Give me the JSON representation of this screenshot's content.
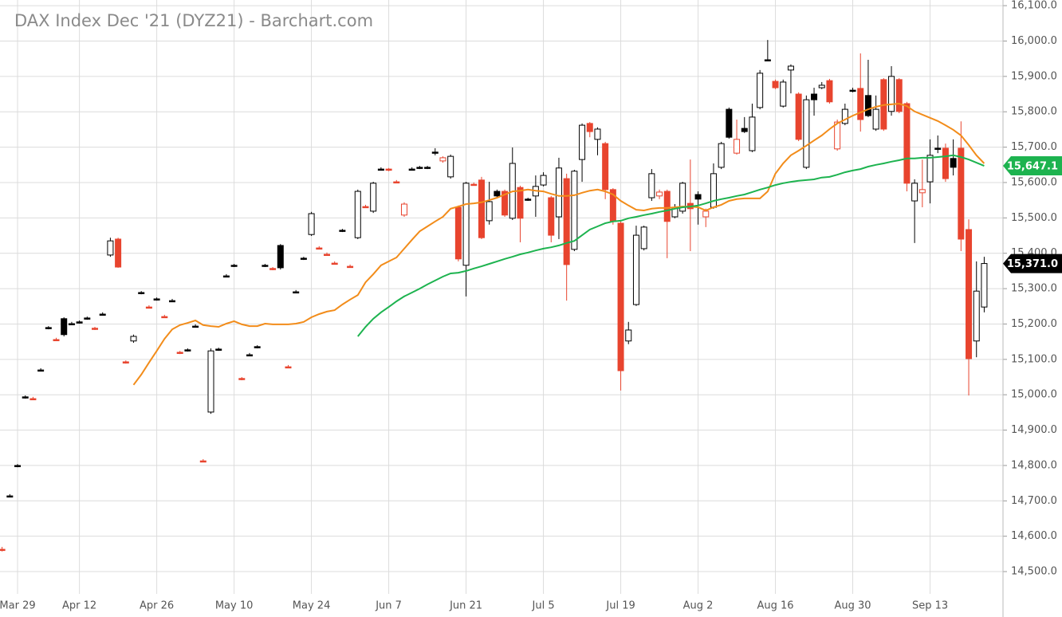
{
  "chart_data": {
    "type": "candlestick",
    "title": "DAX Index Dec '21 (DYZ21) - Barchart.com",
    "colors": {
      "up": "#000000",
      "down": "#e8442e",
      "hollow": "#ffffff"
    },
    "grid": true,
    "ylim": [
      14437,
      16116
    ],
    "xlim": [
      -0.27,
      129.43
    ],
    "yticks": [
      {
        "value": 14500,
        "label": "14,500.0"
      },
      {
        "value": 14600,
        "label": "14,600.0"
      },
      {
        "value": 14700,
        "label": "14,700.0"
      },
      {
        "value": 14800,
        "label": "14,800.0"
      },
      {
        "value": 14900,
        "label": "14,900.0"
      },
      {
        "value": 15000,
        "label": "15,000.0"
      },
      {
        "value": 15100,
        "label": "15,100.0"
      },
      {
        "value": 15200,
        "label": "15,200.0"
      },
      {
        "value": 15300,
        "label": "15,300.0"
      },
      {
        "value": 15400,
        "label": "15,400.0"
      },
      {
        "value": 15500,
        "label": "15,500.0"
      },
      {
        "value": 15600,
        "label": "15,600.0"
      },
      {
        "value": 15700,
        "label": "15,700.0"
      },
      {
        "value": 15800,
        "label": "15,800.0"
      },
      {
        "value": 15900,
        "label": "15,900.0"
      },
      {
        "value": 16000,
        "label": "16,000.0"
      },
      {
        "value": 16100,
        "label": "16,100.0"
      }
    ],
    "xticks": [
      {
        "value": 2,
        "label": "Mar 29"
      },
      {
        "value": 10,
        "label": "Apr 12"
      },
      {
        "value": 20,
        "label": "Apr 26"
      },
      {
        "value": 30,
        "label": "May 10"
      },
      {
        "value": 40,
        "label": "May 24"
      },
      {
        "value": 50,
        "label": "Jun 7"
      },
      {
        "value": 60,
        "label": "Jun 21"
      },
      {
        "value": 70,
        "label": "Jul 5"
      },
      {
        "value": 80,
        "label": "Jul 19"
      },
      {
        "value": 90,
        "label": "Aug 2"
      },
      {
        "value": 100,
        "label": "Aug 16"
      },
      {
        "value": 110,
        "label": "Aug 30"
      },
      {
        "value": 120,
        "label": "Sep 13"
      }
    ],
    "open": [
      14563,
      14714,
      14800,
      14994,
      14989,
      15070,
      15190,
      15156,
      15215,
      15201,
      15206,
      15217,
      15188,
      15228,
      15395,
      15440,
      15093,
      15152,
      15289,
      15248,
      15271,
      15221,
      15266,
      15120,
      15127,
      15194,
      14813,
      14951,
      15129,
      15336,
      15366,
      15046,
      15113,
      15136,
      15366,
      15357,
      15422,
      15079,
      15291,
      15386,
      15453,
      15415,
      15397,
      15372,
      15465,
      15363,
      15444,
      15532,
      15519,
      15638,
      15638,
      15602,
      15508,
      15638,
      15643,
      15643,
      15686,
      15661,
      15616,
      15530,
      15366,
      15595,
      15607,
      15492,
      15575,
      15575,
      15499,
      15586,
      15553,
      15562,
      15593,
      15557,
      15503,
      15611,
      15411,
      15665,
      15767,
      15722,
      15710,
      15580,
      15485,
      15152,
      15255,
      15413,
      15557,
      15562,
      15575,
      15503,
      15519,
      15541,
      15566,
      15503,
      15530,
      15643,
      15807,
      15683,
      15753,
      15690,
      15812,
      15947,
      15886,
      15816,
      15918,
      15850,
      15643,
      15850,
      15868,
      15888,
      15695,
      15767,
      15861,
      15866,
      15846,
      15751,
      15891,
      15801,
      15891,
      15823,
      15548,
      15571,
      15602,
      15697,
      15697,
      15668,
      15697,
      15467,
      15152,
      15248
    ],
    "high": [
      14570,
      14719,
      14804,
      14998,
      14994,
      15075,
      15194,
      15161,
      15219,
      15206,
      15210,
      15221,
      15192,
      15233,
      15444,
      15444,
      15097,
      15170,
      15293,
      15253,
      15275,
      15226,
      15271,
      15124,
      15131,
      15199,
      14818,
      15131,
      15133,
      15341,
      15370,
      15050,
      15118,
      15140,
      15370,
      15361,
      15426,
      15084,
      15296,
      15390,
      15517,
      15420,
      15402,
      15377,
      15469,
      15368,
      15580,
      15537,
      15602,
      15643,
      15641,
      15607,
      15544,
      15643,
      15647,
      15647,
      15697,
      15674,
      15679,
      15535,
      15602,
      15600,
      15616,
      15602,
      15580,
      15580,
      15699,
      15591,
      15557,
      15620,
      15629,
      15562,
      15670,
      15625,
      15636,
      15767,
      15771,
      15756,
      15715,
      15584,
      15490,
      15206,
      15478,
      15478,
      15638,
      15580,
      15580,
      15539,
      15602,
      15665,
      15575,
      15526,
      15654,
      15715,
      15812,
      15778,
      15785,
      15823,
      15918,
      16003,
      15891,
      15891,
      15934,
      15855,
      15846,
      15868,
      15884,
      15893,
      15778,
      15823,
      15868,
      15965,
      15947,
      15846,
      15895,
      15929,
      15895,
      15828,
      15609,
      15665,
      15722,
      15733,
      15710,
      15722,
      15773,
      15496,
      15377,
      15390
    ],
    "low": [
      14557,
      14710,
      14795,
      14989,
      14985,
      15066,
      15185,
      15152,
      15165,
      15197,
      15201,
      15212,
      15183,
      15224,
      15390,
      15359,
      15088,
      15147,
      15284,
      15244,
      15266,
      15217,
      15262,
      15115,
      15122,
      15190,
      14809,
      14946,
      15124,
      15332,
      15361,
      15041,
      15109,
      15131,
      15361,
      15352,
      15354,
      15075,
      15287,
      15381,
      15449,
      15411,
      15393,
      15368,
      15460,
      15359,
      15440,
      15528,
      15514,
      15634,
      15632,
      15598,
      15503,
      15634,
      15638,
      15638,
      15677,
      15656,
      15611,
      15377,
      15278,
      15591,
      15440,
      15481,
      15557,
      15503,
      15494,
      15431,
      15548,
      15503,
      15589,
      15431,
      15440,
      15266,
      15406,
      15602,
      15728,
      15677,
      15553,
      15481,
      15012,
      15143,
      15251,
      15408,
      15548,
      15553,
      15386,
      15499,
      15512,
      15406,
      15481,
      15474,
      15526,
      15638,
      15724,
      15679,
      15740,
      15686,
      15807,
      15943,
      15864,
      15812,
      15852,
      15717,
      15638,
      15789,
      15864,
      15823,
      15690,
      15762,
      15855,
      15744,
      15785,
      15746,
      15746,
      15789,
      15796,
      15575,
      15429,
      15530,
      15541,
      15683,
      15602,
      15620,
      15406,
      14998,
      15106,
      15233
    ],
    "close": [
      14563,
      14714,
      14800,
      14994,
      14989,
      15070,
      15190,
      15156,
      15170,
      15201,
      15206,
      15217,
      15188,
      15228,
      15435,
      15361,
      15093,
      15165,
      15289,
      15248,
      15271,
      15221,
      15266,
      15120,
      15127,
      15194,
      14813,
      15124,
      15129,
      15336,
      15366,
      15046,
      15113,
      15136,
      15366,
      15357,
      15359,
      15079,
      15291,
      15386,
      15512,
      15415,
      15397,
      15372,
      15465,
      15363,
      15575,
      15532,
      15598,
      15638,
      15636,
      15602,
      15539,
      15638,
      15643,
      15643,
      15686,
      15670,
      15674,
      15384,
      15598,
      15595,
      15444,
      15546,
      15562,
      15508,
      15654,
      15499,
      15553,
      15589,
      15620,
      15451,
      15641,
      15368,
      15632,
      15762,
      15744,
      15751,
      15580,
      15490,
      15068,
      15183,
      15451,
      15474,
      15625,
      15573,
      15490,
      15530,
      15598,
      15526,
      15553,
      15519,
      15625,
      15710,
      15728,
      15722,
      15744,
      15785,
      15909,
      15947,
      15868,
      15884,
      15929,
      15722,
      15834,
      15834,
      15875,
      15828,
      15771,
      15807,
      15861,
      15778,
      15789,
      15807,
      15751,
      15900,
      15801,
      15598,
      15598,
      15580,
      15677,
      15697,
      15611,
      15643,
      15440,
      15102,
      15293,
      15371.0
    ],
    "last_close_label": "15,371.0",
    "last_close_color": "#000000",
    "series": [
      {
        "color": "#f28c1a",
        "values": [
          null,
          null,
          null,
          null,
          null,
          null,
          null,
          null,
          null,
          null,
          null,
          null,
          null,
          null,
          null,
          null,
          null,
          15028,
          15057,
          15091,
          15124,
          15158,
          15185,
          15197,
          15203,
          15210,
          15197,
          15194,
          15192,
          15201,
          15208,
          15199,
          15194,
          15194,
          15201,
          15199,
          15199,
          15199,
          15201,
          15206,
          15219,
          15228,
          15235,
          15239,
          15255,
          15269,
          15282,
          15318,
          15341,
          15366,
          15377,
          15388,
          15413,
          15438,
          15462,
          15476,
          15490,
          15503,
          15526,
          15532,
          15539,
          15541,
          15544,
          15550,
          15557,
          15566,
          15575,
          15577,
          15580,
          15577,
          15575,
          15568,
          15562,
          15562,
          15564,
          15571,
          15577,
          15580,
          15575,
          15566,
          15548,
          15535,
          15523,
          15521,
          15526,
          15528,
          15528,
          15530,
          15532,
          15532,
          15530,
          15521,
          15530,
          15537,
          15548,
          15553,
          15555,
          15555,
          15555,
          15575,
          15625,
          15654,
          15677,
          15690,
          15704,
          15719,
          15733,
          15751,
          15767,
          15778,
          15789,
          15798,
          15807,
          15814,
          15819,
          15821,
          15823,
          15816,
          15801,
          15792,
          15783,
          15774,
          15762,
          15749,
          15733,
          15706,
          15677,
          15654
        ]
      },
      {
        "color": "#1db34f",
        "values": [
          null,
          null,
          null,
          null,
          null,
          null,
          null,
          null,
          null,
          null,
          null,
          null,
          null,
          null,
          null,
          null,
          null,
          null,
          null,
          null,
          null,
          null,
          null,
          null,
          null,
          null,
          null,
          null,
          null,
          null,
          null,
          null,
          null,
          null,
          null,
          null,
          null,
          null,
          null,
          null,
          null,
          null,
          null,
          null,
          null,
          null,
          15165,
          15192,
          15215,
          15233,
          15248,
          15264,
          15278,
          15289,
          15300,
          15312,
          15323,
          15334,
          15343,
          15345,
          15350,
          15357,
          15363,
          15370,
          15377,
          15384,
          15390,
          15397,
          15402,
          15408,
          15413,
          15417,
          15422,
          15429,
          15435,
          15451,
          15467,
          15476,
          15485,
          15490,
          15492,
          15499,
          15503,
          15508,
          15512,
          15517,
          15521,
          15526,
          15530,
          15532,
          15535,
          15541,
          15548,
          15553,
          15557,
          15562,
          15566,
          15573,
          15580,
          15586,
          15593,
          15598,
          15602,
          15605,
          15607,
          15609,
          15614,
          15616,
          15622,
          15629,
          15634,
          15638,
          15645,
          15650,
          15654,
          15659,
          15663,
          15668,
          15668,
          15670,
          15670,
          15672,
          15674,
          15677,
          15672,
          15665,
          15656,
          15647.1
        ],
        "last_label": "15,647.1"
      }
    ]
  }
}
